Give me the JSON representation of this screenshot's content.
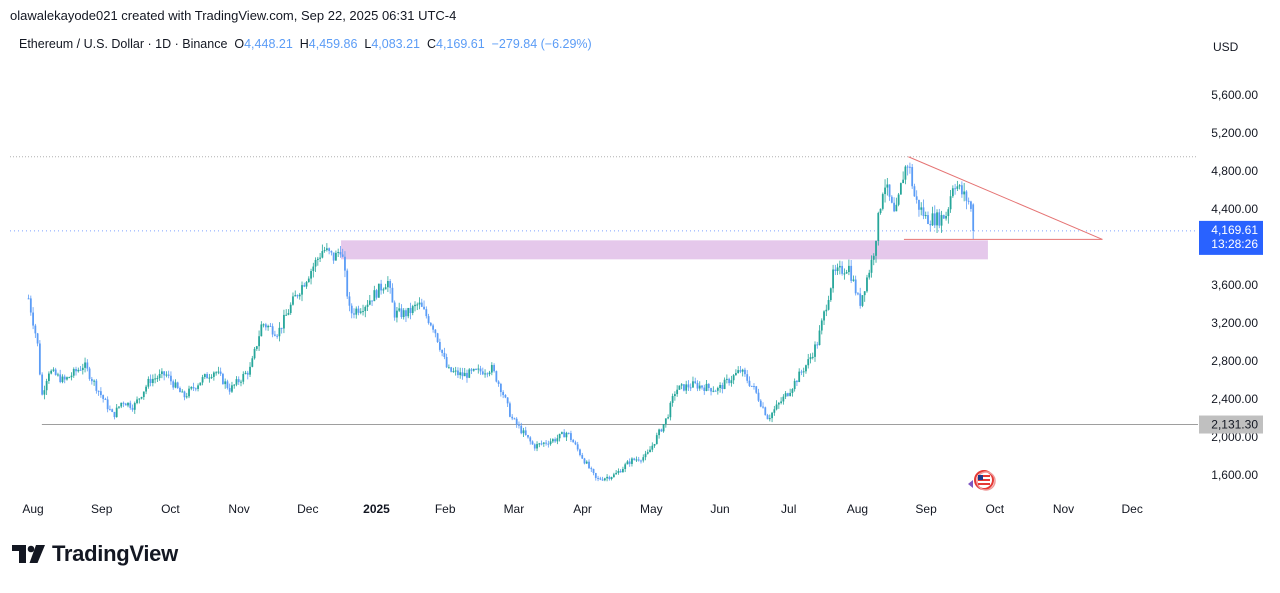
{
  "header": {
    "attribution": "olawalekayode021 created with TradingView.com, Sep 22, 2025 06:31 UTC-4"
  },
  "legend": {
    "symbol": "Ethereum / U.S. Dollar · 1D · Binance",
    "o_label": "O",
    "o_value": "4,448.21",
    "h_label": "H",
    "h_value": "4,459.86",
    "l_label": "L",
    "l_value": "4,083.21",
    "c_label": "C",
    "c_value": "4,169.61",
    "change": "−279.84 (−6.29%)"
  },
  "brand": {
    "name": "TradingView"
  },
  "colors": {
    "up": "#26a69a",
    "candle": "#5b9cf6",
    "zone": "#e1bee7",
    "trendline": "#e57373",
    "price_tag": "#2962ff",
    "level_tag": "#c0c0c0"
  },
  "chart_data": {
    "type": "candlestick",
    "currency_label": "USD",
    "ylim": [
      1400,
      5800
    ],
    "y_ticks": [
      "1,600.00",
      "2,000.00",
      "2,400.00",
      "2,800.00",
      "3,200.00",
      "3,600.00",
      "4,000.00",
      "4,400.00",
      "4,800.00",
      "5,200.00",
      "5,600.00"
    ],
    "y_tick_values": [
      1600,
      2000,
      2400,
      2800,
      3200,
      3600,
      4000,
      4400,
      4800,
      5200,
      5600
    ],
    "x_ticks": [
      "Aug",
      "Sep",
      "Oct",
      "Nov",
      "Dec",
      "2025",
      "Feb",
      "Mar",
      "Apr",
      "May",
      "Jun",
      "Jul",
      "Aug",
      "Sep",
      "Oct",
      "Nov",
      "Dec"
    ],
    "x_tick_dates": [
      "2024-08-01",
      "2024-09-01",
      "2024-10-01",
      "2024-11-01",
      "2024-12-01",
      "2025-01-01",
      "2025-02-01",
      "2025-03-01",
      "2025-04-01",
      "2025-05-01",
      "2025-06-01",
      "2025-07-01",
      "2025-08-01",
      "2025-09-01",
      "2025-10-01",
      "2025-11-01",
      "2025-12-01"
    ],
    "bold_x_ticks": [
      "2025"
    ],
    "last_price": "4,169.61",
    "countdown": "13:28:26",
    "support_level_label": "2,131.30",
    "close_path": [
      [
        "2024-07-30",
        3460
      ],
      [
        "2024-08-03",
        2990
      ],
      [
        "2024-08-05",
        2430
      ],
      [
        "2024-08-08",
        2700
      ],
      [
        "2024-08-15",
        2590
      ],
      [
        "2024-08-24",
        2760
      ],
      [
        "2024-09-01",
        2430
      ],
      [
        "2024-09-06",
        2220
      ],
      [
        "2024-09-10",
        2380
      ],
      [
        "2024-09-15",
        2320
      ],
      [
        "2024-09-22",
        2600
      ],
      [
        "2024-09-29",
        2660
      ],
      [
        "2024-10-07",
        2420
      ],
      [
        "2024-10-15",
        2600
      ],
      [
        "2024-10-21",
        2700
      ],
      [
        "2024-10-28",
        2500
      ],
      [
        "2024-11-06",
        2720
      ],
      [
        "2024-11-11",
        3200
      ],
      [
        "2024-11-18",
        3100
      ],
      [
        "2024-11-25",
        3450
      ],
      [
        "2024-12-01",
        3700
      ],
      [
        "2024-12-08",
        3980
      ],
      [
        "2024-12-13",
        3880
      ],
      [
        "2024-12-16",
        4000
      ],
      [
        "2024-12-20",
        3300
      ],
      [
        "2024-12-27",
        3400
      ],
      [
        "2025-01-06",
        3650
      ],
      [
        "2025-01-09",
        3300
      ],
      [
        "2025-01-15",
        3300
      ],
      [
        "2025-01-20",
        3400
      ],
      [
        "2025-01-27",
        3150
      ],
      [
        "2025-02-02",
        2700
      ],
      [
        "2025-02-08",
        2650
      ],
      [
        "2025-02-20",
        2720
      ],
      [
        "2025-02-24",
        2500
      ],
      [
        "2025-02-28",
        2200
      ],
      [
        "2025-03-10",
        1900
      ],
      [
        "2025-03-20",
        1980
      ],
      [
        "2025-03-25",
        2050
      ],
      [
        "2025-03-31",
        1820
      ],
      [
        "2025-04-07",
        1550
      ],
      [
        "2025-04-15",
        1600
      ],
      [
        "2025-04-22",
        1750
      ],
      [
        "2025-04-29",
        1800
      ],
      [
        "2025-05-08",
        2200
      ],
      [
        "2025-05-12",
        2500
      ],
      [
        "2025-05-20",
        2550
      ],
      [
        "2025-05-31",
        2500
      ],
      [
        "2025-06-10",
        2700
      ],
      [
        "2025-06-16",
        2500
      ],
      [
        "2025-06-22",
        2200
      ],
      [
        "2025-07-01",
        2480
      ],
      [
        "2025-07-10",
        2800
      ],
      [
        "2025-07-14",
        3000
      ],
      [
        "2025-07-21",
        3700
      ],
      [
        "2025-07-28",
        3800
      ],
      [
        "2025-08-02",
        3400
      ],
      [
        "2025-08-08",
        3900
      ],
      [
        "2025-08-13",
        4700
      ],
      [
        "2025-08-18",
        4300
      ],
      [
        "2025-08-22",
        4800
      ],
      [
        "2025-08-24",
        4900
      ],
      [
        "2025-08-27",
        4500
      ],
      [
        "2025-09-01",
        4300
      ],
      [
        "2025-09-07",
        4300
      ],
      [
        "2025-09-10",
        4350
      ],
      [
        "2025-09-13",
        4700
      ],
      [
        "2025-09-17",
        4550
      ],
      [
        "2025-09-20",
        4470
      ],
      [
        "2025-09-22",
        4169.61
      ]
    ],
    "levels": [
      {
        "name": "all-time-high",
        "value": 4950
      },
      {
        "name": "support",
        "value": 2131.3
      }
    ],
    "zone": {
      "from": "2024-12-16",
      "to": "2025-09-28",
      "y_low": 3870,
      "y_high": 4070
    },
    "trendlines": [
      {
        "name": "descending-resistance",
        "from": [
          "2025-08-24",
          4950
        ],
        "to": [
          "2025-11-18",
          4080
        ]
      },
      {
        "name": "horizontal-support",
        "from": [
          "2025-08-22",
          4080
        ],
        "to": [
          "2025-11-18",
          4080
        ]
      }
    ]
  }
}
